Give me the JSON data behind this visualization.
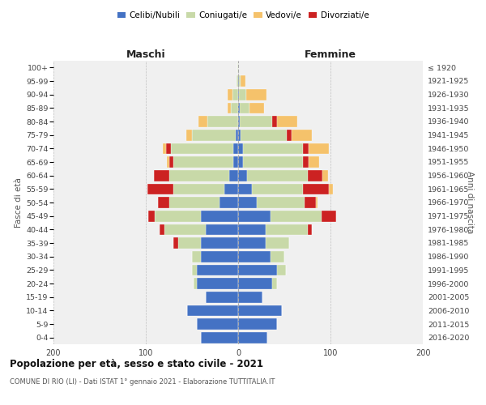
{
  "age_groups": [
    "0-4",
    "5-9",
    "10-14",
    "15-19",
    "20-24",
    "25-29",
    "30-34",
    "35-39",
    "40-44",
    "45-49",
    "50-54",
    "55-59",
    "60-64",
    "65-69",
    "70-74",
    "75-79",
    "80-84",
    "85-89",
    "90-94",
    "95-99",
    "100+"
  ],
  "birth_years": [
    "2016-2020",
    "2011-2015",
    "2006-2010",
    "2001-2005",
    "1996-2000",
    "1991-1995",
    "1986-1990",
    "1981-1985",
    "1976-1980",
    "1971-1975",
    "1966-1970",
    "1961-1965",
    "1956-1960",
    "1951-1955",
    "1946-1950",
    "1941-1945",
    "1936-1940",
    "1931-1935",
    "1926-1930",
    "1921-1925",
    "≤ 1920"
  ],
  "maschi_celibi": [
    40,
    45,
    55,
    35,
    45,
    45,
    40,
    40,
    35,
    40,
    20,
    15,
    10,
    5,
    5,
    3,
    0,
    0,
    0,
    0,
    0
  ],
  "maschi_coniugati": [
    0,
    0,
    0,
    0,
    3,
    5,
    10,
    25,
    45,
    50,
    55,
    55,
    65,
    65,
    68,
    47,
    33,
    8,
    6,
    2,
    1
  ],
  "maschi_vedovi": [
    0,
    0,
    0,
    0,
    0,
    0,
    0,
    0,
    0,
    0,
    0,
    0,
    0,
    2,
    4,
    6,
    10,
    3,
    5,
    0,
    0
  ],
  "maschi_divorziati": [
    0,
    0,
    0,
    0,
    0,
    0,
    0,
    5,
    5,
    7,
    12,
    28,
    16,
    5,
    5,
    0,
    0,
    0,
    0,
    0,
    0
  ],
  "femmine_celibi": [
    32,
    42,
    47,
    26,
    37,
    42,
    35,
    30,
    30,
    35,
    20,
    15,
    10,
    5,
    5,
    3,
    2,
    2,
    1,
    1,
    0
  ],
  "femmine_coniugati": [
    0,
    0,
    0,
    0,
    5,
    10,
    15,
    25,
    45,
    55,
    52,
    55,
    65,
    65,
    65,
    50,
    35,
    10,
    8,
    2,
    0
  ],
  "femmine_vedovi": [
    0,
    0,
    0,
    0,
    0,
    0,
    0,
    0,
    0,
    0,
    2,
    5,
    6,
    12,
    22,
    22,
    22,
    16,
    22,
    5,
    0
  ],
  "femmine_divorziati": [
    0,
    0,
    0,
    0,
    0,
    0,
    0,
    0,
    5,
    16,
    12,
    28,
    16,
    6,
    6,
    5,
    5,
    0,
    0,
    0,
    0
  ],
  "color_celibi": "#4472c4",
  "color_coniugati": "#c8d9a8",
  "color_vedovi": "#f5c26b",
  "color_divorziati": "#cc2222",
  "title": "Popolazione per età, sesso e stato civile - 2021",
  "subtitle": "COMUNE DI RIO (LI) - Dati ISTAT 1° gennaio 2021 - Elaborazione TUTTITALIA.IT",
  "label_maschi": "Maschi",
  "label_femmine": "Femmine",
  "ylabel_left": "Fasce di età",
  "ylabel_right": "Anni di nascita",
  "xlim": 200,
  "bg_color": "#f0f0f0",
  "grid_color": "#bbbbbb",
  "legend_labels": [
    "Celibi/Nubili",
    "Coniugati/e",
    "Vedovi/e",
    "Divorziati/e"
  ]
}
